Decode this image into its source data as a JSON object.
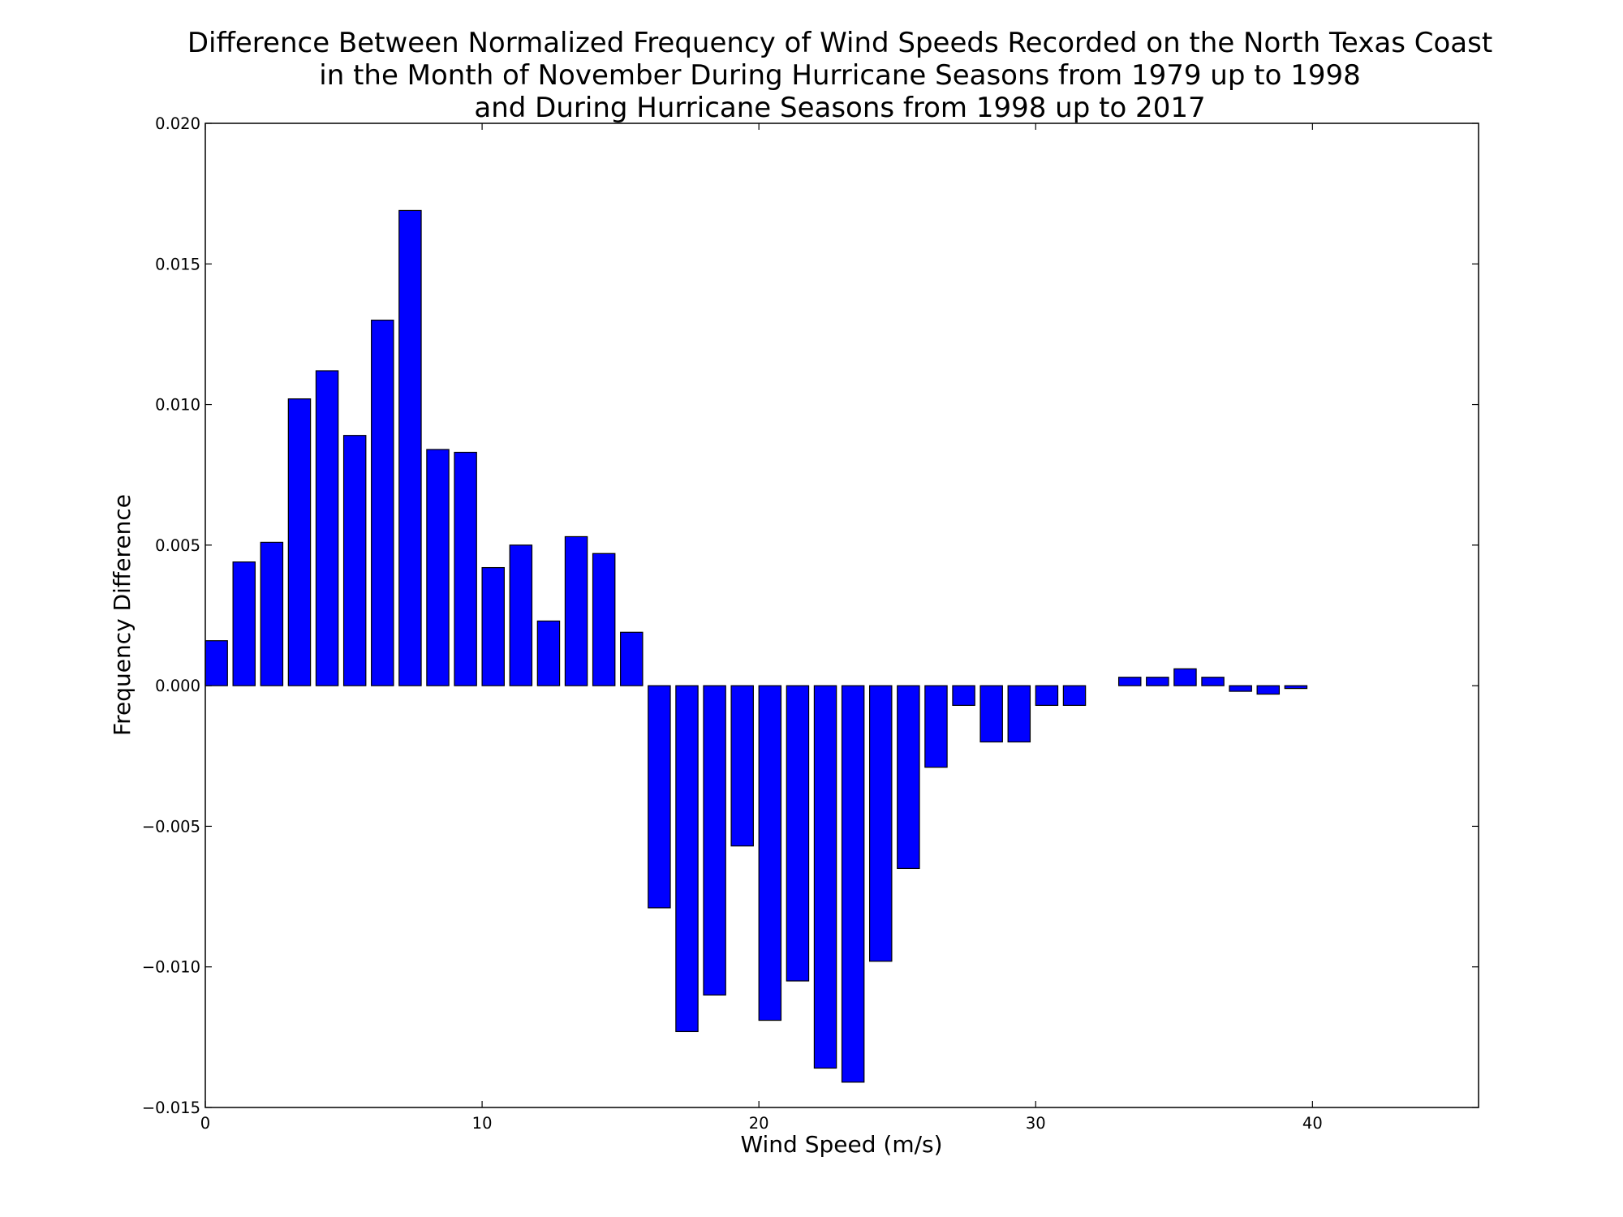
{
  "chart_data": {
    "type": "bar",
    "title_lines": [
      "Difference Between Normalized Frequency of Wind Speeds Recorded on the North Texas Coast",
      "in the Month of November During Hurricane Seasons from 1979 up to 1998",
      "and During Hurricane Seasons from 1998 up to 2017"
    ],
    "xlabel": "Wind Speed (m/s)",
    "ylabel": "Frequency Difference",
    "xlim": [
      0,
      46
    ],
    "ylim": [
      -0.015,
      0.02
    ],
    "x_ticks": [
      0,
      10,
      20,
      30,
      40
    ],
    "x_tick_labels": [
      "0",
      "10",
      "20",
      "30",
      "40"
    ],
    "y_ticks": [
      -0.015,
      -0.01,
      -0.005,
      0.0,
      0.005,
      0.01,
      0.015,
      0.02
    ],
    "y_tick_labels": [
      "−0.015",
      "−0.010",
      "−0.005",
      "0.000",
      "0.005",
      "0.010",
      "0.015",
      "0.020"
    ],
    "bar_width": 0.8,
    "bar_color": "#0000ff",
    "edge_color": "#000000",
    "grid": false,
    "x": [
      0,
      1,
      2,
      3,
      4,
      5,
      6,
      7,
      8,
      9,
      10,
      11,
      12,
      13,
      14,
      15,
      16,
      17,
      18,
      19,
      20,
      21,
      22,
      23,
      24,
      25,
      26,
      27,
      28,
      29,
      30,
      31,
      32,
      33,
      34,
      35,
      36,
      37,
      38,
      39,
      40,
      41,
      42,
      43,
      44
    ],
    "values": [
      0.0016,
      0.0044,
      0.0051,
      0.0102,
      0.0112,
      0.0089,
      0.013,
      0.0169,
      0.0084,
      0.0083,
      0.0042,
      0.005,
      0.0023,
      0.0053,
      0.0047,
      0.0019,
      -0.0079,
      -0.0123,
      -0.011,
      -0.0057,
      -0.0119,
      -0.0105,
      -0.0136,
      -0.0141,
      -0.0098,
      -0.0065,
      -0.0029,
      -0.0007,
      -0.002,
      -0.002,
      -0.0007,
      -0.0007,
      0.0,
      0.0003,
      0.0003,
      0.0006,
      0.0003,
      -0.0002,
      -0.0003,
      -0.0001,
      0.0,
      0.0,
      0.0,
      0.0,
      0.0
    ]
  }
}
